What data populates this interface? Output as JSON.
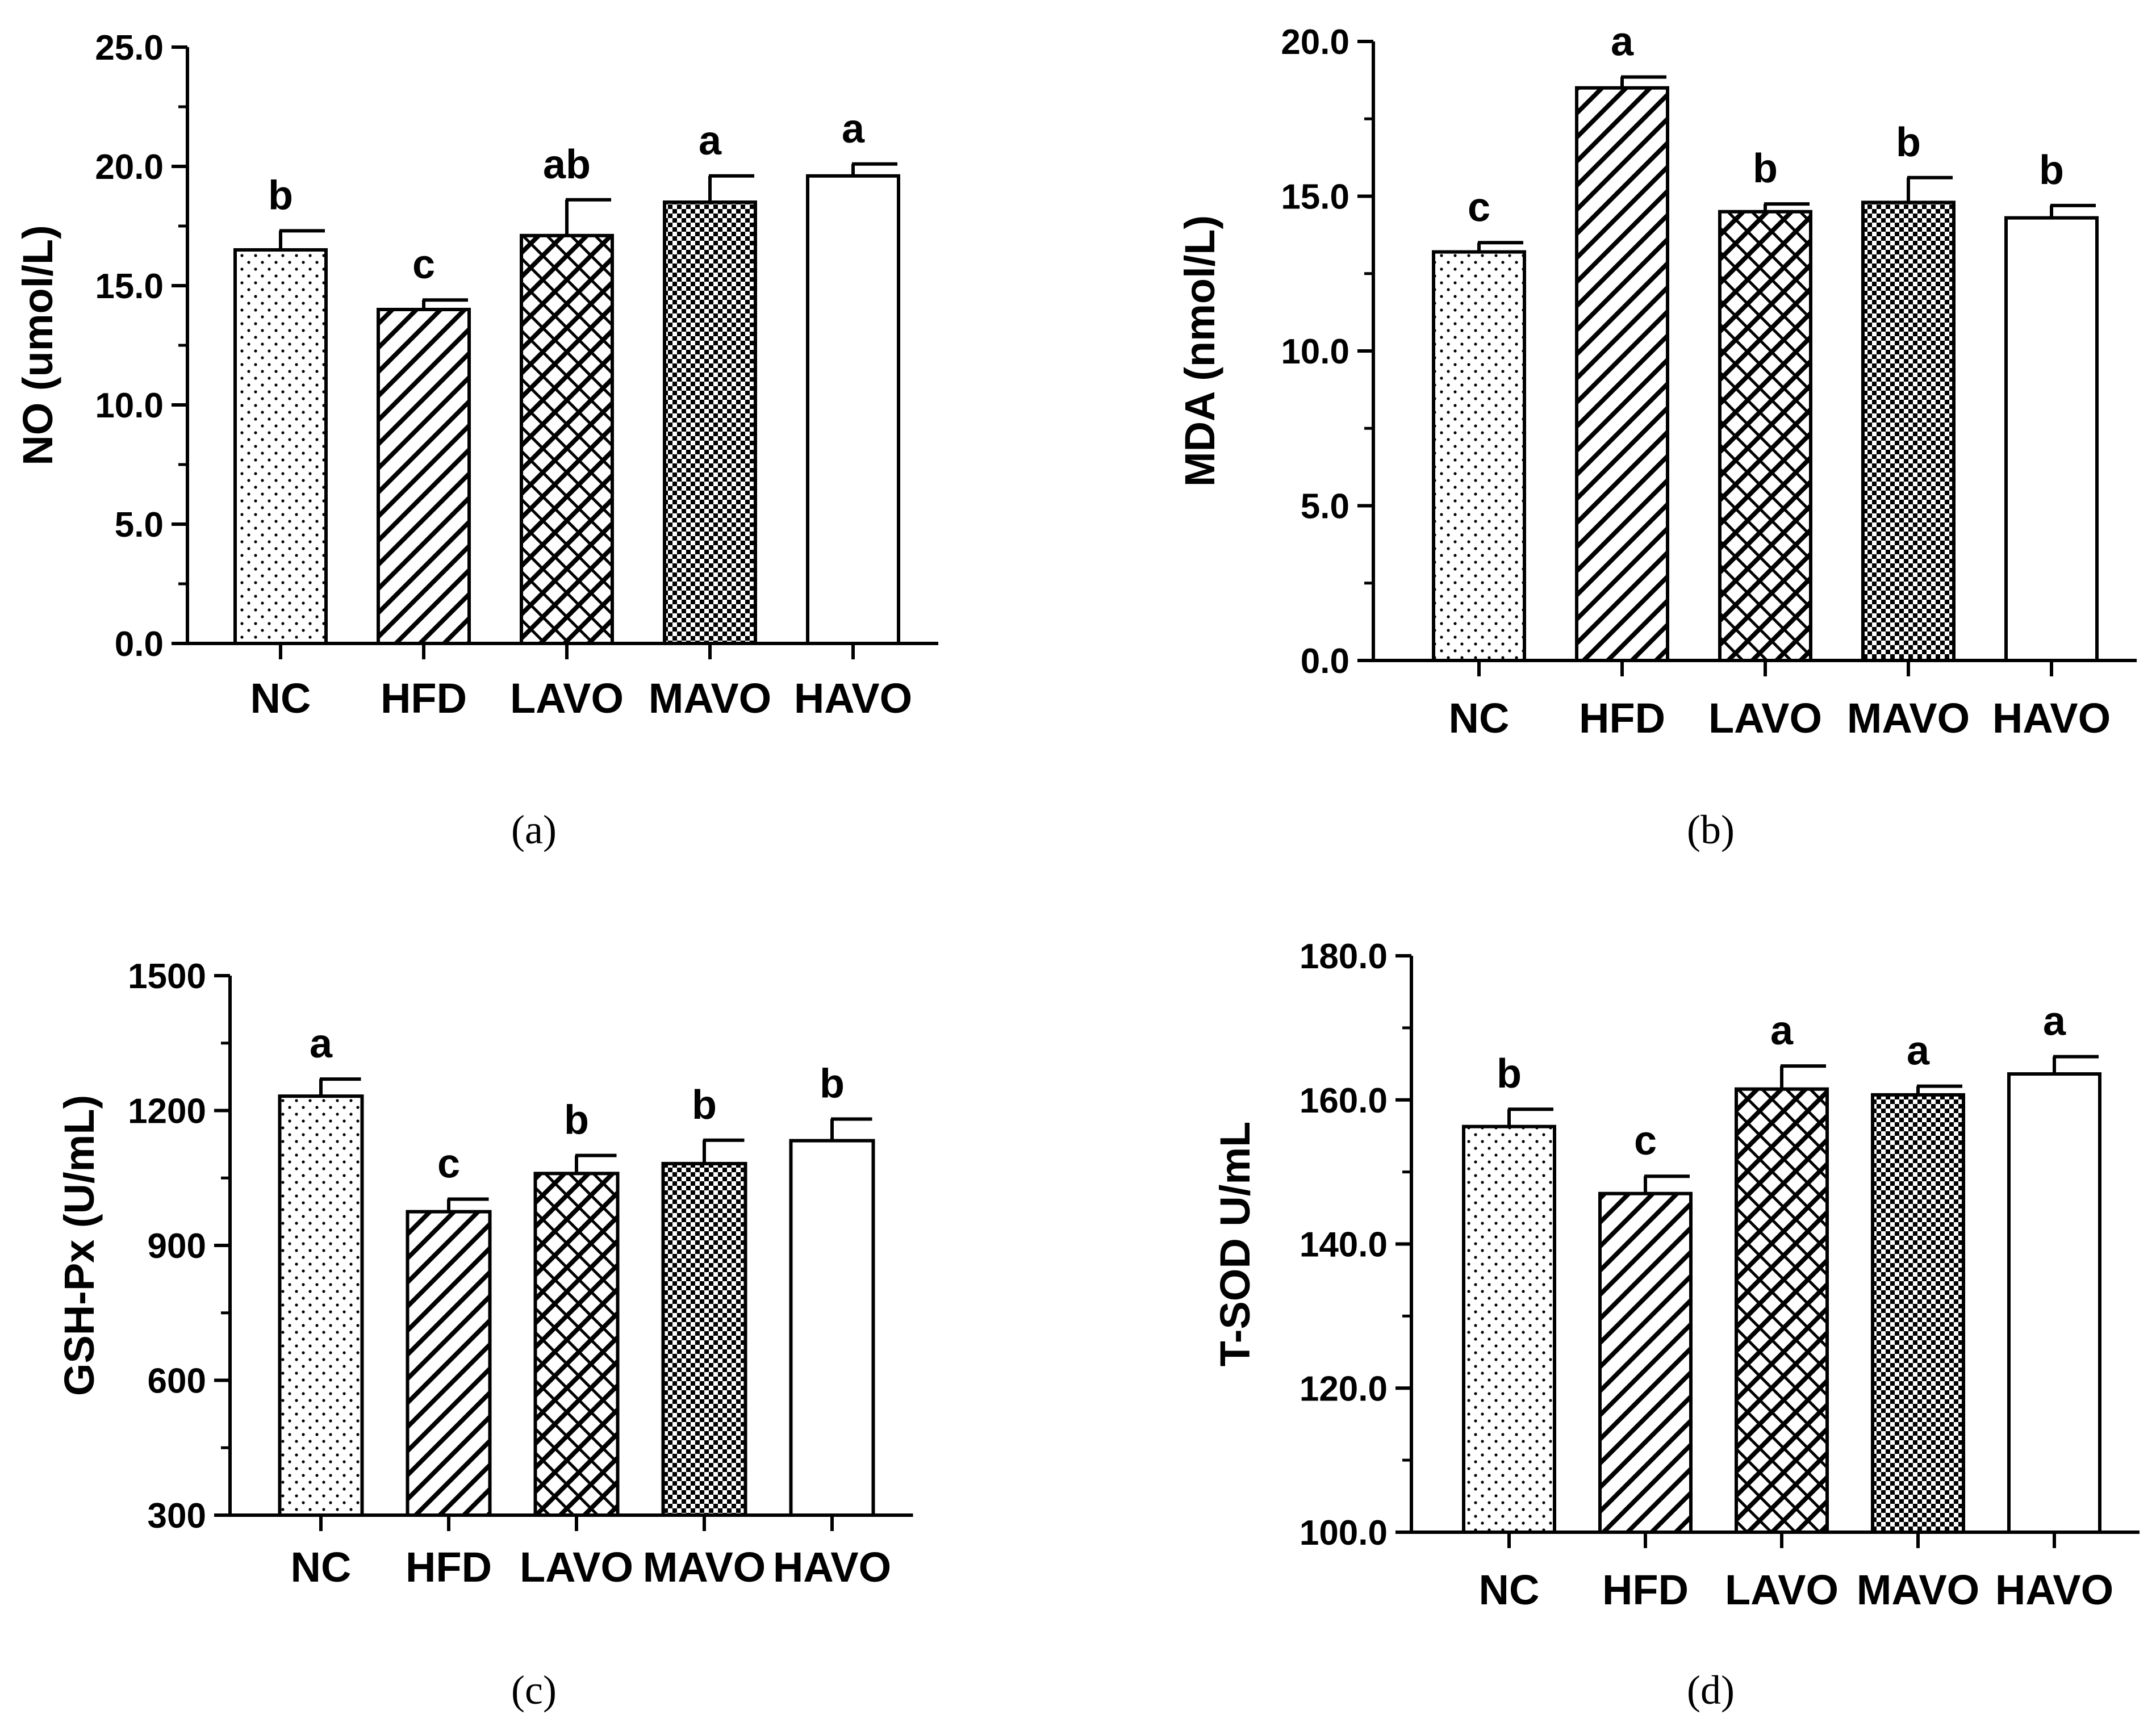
{
  "chart_data": [
    {
      "type": "bar",
      "panel_label": "(a)",
      "ylabel": "NO (umol/L)",
      "categories": [
        "NC",
        "HFD",
        "LAVO",
        "MAVO",
        "HAVO"
      ],
      "values": [
        16.5,
        14.0,
        17.1,
        18.5,
        19.6
      ],
      "errors": [
        0.8,
        0.4,
        1.5,
        1.1,
        0.5
      ],
      "significance": [
        "b",
        "c",
        "ab",
        "a",
        "a"
      ],
      "ylim": [
        0,
        25
      ],
      "yticks": [
        0,
        5,
        10,
        15,
        20,
        25
      ],
      "ytick_labels": [
        "0.0",
        "5.0",
        "10.0",
        "15.0",
        "20.0",
        "25.0"
      ],
      "patterns": [
        "dots",
        "diagonal",
        "crosshatch",
        "checker",
        "none"
      ]
    },
    {
      "type": "bar",
      "panel_label": "(b)",
      "ylabel": "MDA (nmol/L)",
      "categories": [
        "NC",
        "HFD",
        "LAVO",
        "MAVO",
        "HAVO"
      ],
      "values": [
        13.2,
        18.5,
        14.5,
        14.8,
        14.3
      ],
      "errors": [
        0.3,
        0.35,
        0.25,
        0.8,
        0.4
      ],
      "significance": [
        "c",
        "a",
        "b",
        "b",
        "b"
      ],
      "ylim": [
        0,
        20
      ],
      "yticks": [
        0,
        5,
        10,
        15,
        20
      ],
      "ytick_labels": [
        "0.0",
        "5.0",
        "10.0",
        "15.0",
        "20.0"
      ],
      "patterns": [
        "dots",
        "diagonal",
        "crosshatch",
        "checker",
        "none"
      ]
    },
    {
      "type": "bar",
      "panel_label": "(c)",
      "ylabel": "GSH-Px (U/mL)",
      "categories": [
        "NC",
        "HFD",
        "LAVO",
        "MAVO",
        "HAVO"
      ],
      "values": [
        1232,
        975,
        1060,
        1082,
        1133
      ],
      "errors": [
        38,
        28,
        40,
        52,
        48
      ],
      "significance": [
        "a",
        "c",
        "b",
        "b",
        "b"
      ],
      "ylim": [
        300,
        1500
      ],
      "yticks": [
        300,
        600,
        900,
        1200,
        1500
      ],
      "ytick_labels": [
        "300",
        "600",
        "900",
        "1200",
        "1500"
      ],
      "patterns": [
        "dots",
        "diagonal",
        "crosshatch",
        "checker",
        "none"
      ]
    },
    {
      "type": "bar",
      "panel_label": "(d)",
      "ylabel": "T-SOD U/mL",
      "categories": [
        "NC",
        "HFD",
        "LAVO",
        "MAVO",
        "HAVO"
      ],
      "values": [
        156.3,
        147.0,
        161.5,
        160.7,
        163.6
      ],
      "errors": [
        2.4,
        2.4,
        3.2,
        1.2,
        2.4
      ],
      "significance": [
        "b",
        "c",
        "a",
        "a",
        "a"
      ],
      "ylim": [
        100,
        180
      ],
      "yticks": [
        100,
        120,
        140,
        160,
        180
      ],
      "ytick_labels": [
        "100.0",
        "120.0",
        "140.0",
        "160.0",
        "180.0"
      ],
      "patterns": [
        "dots",
        "diagonal",
        "crosshatch",
        "checker",
        "none"
      ]
    }
  ]
}
